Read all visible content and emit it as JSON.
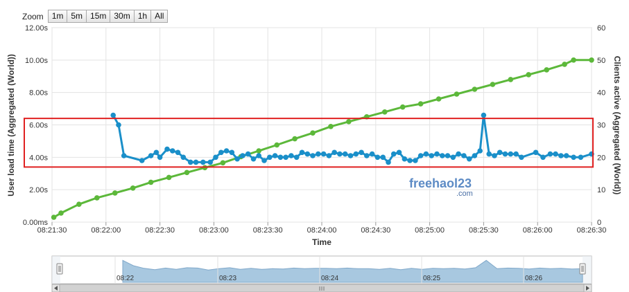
{
  "zoom": {
    "label": "Zoom",
    "buttons": [
      "1m",
      "5m",
      "15m",
      "30m",
      "1h",
      "All"
    ]
  },
  "watermark": {
    "line1": "freehaol23",
    "line2": ".com"
  },
  "chart_data": {
    "type": "line",
    "xlabel": "Time",
    "ylabel_left": "User load time (Aggregated (World))",
    "ylabel_right": "Clients active (Aggregated (World))",
    "x_range_seconds": [
      "08:21:30",
      "08:26:30"
    ],
    "x_ticks": [
      "08:21:30",
      "08:22:00",
      "08:22:30",
      "08:23:00",
      "08:23:30",
      "08:24:00",
      "08:24:30",
      "08:25:00",
      "08:25:30",
      "08:26:00",
      "08:26:30"
    ],
    "y_left_ticks": [
      "0.00ms",
      "2.00s",
      "4.00s",
      "6.00s",
      "8.00s",
      "10.00s",
      "12.00s"
    ],
    "y_left_range": [
      0,
      12
    ],
    "y_right_ticks": [
      "0",
      "10",
      "20",
      "30",
      "40",
      "50",
      "60"
    ],
    "y_right_range": [
      0,
      60
    ],
    "grid": true,
    "highlight_box_left_axis": [
      3.4,
      6.4
    ],
    "series": [
      {
        "axis": "left",
        "unit": "s",
        "color": "#1a8fc9",
        "points": [
          [
            "08:22:04",
            6.6
          ],
          [
            "08:22:07",
            6.0
          ],
          [
            "08:22:10",
            4.1
          ],
          [
            "08:22:20",
            3.8
          ],
          [
            "08:22:25",
            4.1
          ],
          [
            "08:22:28",
            4.3
          ],
          [
            "08:22:30",
            4.0
          ],
          [
            "08:22:34",
            4.5
          ],
          [
            "08:22:37",
            4.4
          ],
          [
            "08:22:40",
            4.3
          ],
          [
            "08:22:43",
            4.0
          ],
          [
            "08:22:47",
            3.7
          ],
          [
            "08:22:50",
            3.7
          ],
          [
            "08:22:54",
            3.7
          ],
          [
            "08:22:58",
            3.7
          ],
          [
            "08:23:01",
            4.0
          ],
          [
            "08:23:04",
            4.3
          ],
          [
            "08:23:07",
            4.4
          ],
          [
            "08:23:10",
            4.3
          ],
          [
            "08:23:13",
            3.9
          ],
          [
            "08:23:16",
            4.1
          ],
          [
            "08:23:19",
            4.2
          ],
          [
            "08:23:22",
            3.9
          ],
          [
            "08:23:25",
            4.1
          ],
          [
            "08:23:28",
            3.8
          ],
          [
            "08:23:31",
            4.0
          ],
          [
            "08:23:34",
            4.1
          ],
          [
            "08:23:37",
            4.0
          ],
          [
            "08:23:40",
            4.0
          ],
          [
            "08:23:43",
            4.1
          ],
          [
            "08:23:46",
            4.0
          ],
          [
            "08:23:49",
            4.3
          ],
          [
            "08:23:52",
            4.2
          ],
          [
            "08:23:55",
            4.1
          ],
          [
            "08:23:58",
            4.2
          ],
          [
            "08:24:01",
            4.2
          ],
          [
            "08:24:04",
            4.1
          ],
          [
            "08:24:07",
            4.3
          ],
          [
            "08:24:10",
            4.2
          ],
          [
            "08:24:13",
            4.2
          ],
          [
            "08:24:16",
            4.1
          ],
          [
            "08:24:19",
            4.2
          ],
          [
            "08:24:22",
            4.3
          ],
          [
            "08:24:25",
            4.1
          ],
          [
            "08:24:28",
            4.2
          ],
          [
            "08:24:31",
            4.0
          ],
          [
            "08:24:34",
            4.0
          ],
          [
            "08:24:37",
            3.7
          ],
          [
            "08:24:40",
            4.2
          ],
          [
            "08:24:43",
            4.3
          ],
          [
            "08:24:46",
            3.9
          ],
          [
            "08:24:49",
            3.8
          ],
          [
            "08:24:52",
            3.8
          ],
          [
            "08:24:55",
            4.1
          ],
          [
            "08:24:58",
            4.2
          ],
          [
            "08:25:01",
            4.1
          ],
          [
            "08:25:04",
            4.2
          ],
          [
            "08:25:07",
            4.1
          ],
          [
            "08:25:10",
            4.1
          ],
          [
            "08:25:13",
            4.0
          ],
          [
            "08:25:16",
            4.2
          ],
          [
            "08:25:19",
            4.1
          ],
          [
            "08:25:22",
            3.9
          ],
          [
            "08:25:25",
            4.1
          ],
          [
            "08:25:28",
            4.4
          ],
          [
            "08:25:30",
            6.6
          ],
          [
            "08:25:33",
            4.2
          ],
          [
            "08:25:36",
            4.1
          ],
          [
            "08:25:39",
            4.3
          ],
          [
            "08:25:42",
            4.2
          ],
          [
            "08:25:45",
            4.2
          ],
          [
            "08:25:48",
            4.2
          ],
          [
            "08:25:51",
            4.0
          ],
          [
            "08:25:59",
            4.3
          ],
          [
            "08:26:03",
            4.0
          ],
          [
            "08:26:07",
            4.2
          ],
          [
            "08:26:10",
            4.2
          ],
          [
            "08:26:13",
            4.1
          ],
          [
            "08:26:16",
            4.1
          ],
          [
            "08:26:20",
            4.0
          ],
          [
            "08:26:24",
            4.0
          ],
          [
            "08:26:30",
            4.2
          ]
        ]
      },
      {
        "axis": "right",
        "unit": "clients",
        "color": "#5cb83a",
        "points": [
          [
            "08:21:31",
            1.5
          ],
          [
            "08:21:35",
            2.8
          ],
          [
            "08:21:45",
            5.5
          ],
          [
            "08:21:55",
            7.5
          ],
          [
            "08:22:05",
            9.0
          ],
          [
            "08:22:15",
            10.5
          ],
          [
            "08:22:25",
            12.3
          ],
          [
            "08:22:35",
            13.8
          ],
          [
            "08:22:45",
            15.3
          ],
          [
            "08:22:55",
            16.8
          ],
          [
            "08:23:05",
            18.3
          ],
          [
            "08:23:15",
            20.2
          ],
          [
            "08:23:25",
            22.0
          ],
          [
            "08:23:35",
            23.8
          ],
          [
            "08:23:45",
            25.7
          ],
          [
            "08:23:55",
            27.5
          ],
          [
            "08:24:05",
            29.5
          ],
          [
            "08:24:15",
            31.0
          ],
          [
            "08:24:25",
            32.5
          ],
          [
            "08:24:35",
            34.0
          ],
          [
            "08:24:45",
            35.5
          ],
          [
            "08:24:55",
            36.5
          ],
          [
            "08:25:05",
            38.0
          ],
          [
            "08:25:15",
            39.5
          ],
          [
            "08:25:25",
            41.0
          ],
          [
            "08:25:35",
            42.5
          ],
          [
            "08:25:45",
            44.0
          ],
          [
            "08:25:55",
            45.5
          ],
          [
            "08:26:05",
            47.0
          ],
          [
            "08:26:15",
            48.7
          ],
          [
            "08:26:20",
            50.0
          ],
          [
            "08:26:30",
            50.0
          ]
        ]
      }
    ]
  },
  "navigator": {
    "labels": [
      "08:22",
      "08:23",
      "08:24",
      "08:25",
      "08:26"
    ],
    "series_color": "#a8c8e0",
    "values": [
      6.6,
      5.0,
      4.2,
      3.8,
      4.3,
      3.9,
      4.4,
      4.3,
      3.7,
      4.1,
      4.4,
      3.9,
      4.2,
      3.9,
      4.1,
      4.0,
      4.3,
      4.1,
      4.2,
      4.2,
      4.1,
      4.3,
      4.1,
      4.1,
      3.9,
      4.2,
      3.8,
      4.2,
      3.9,
      4.2,
      4.1,
      4.2,
      4.0,
      4.4,
      6.6,
      4.1,
      4.3,
      4.2,
      4.0,
      4.3,
      4.1,
      4.2,
      4.0,
      4.1
    ]
  }
}
